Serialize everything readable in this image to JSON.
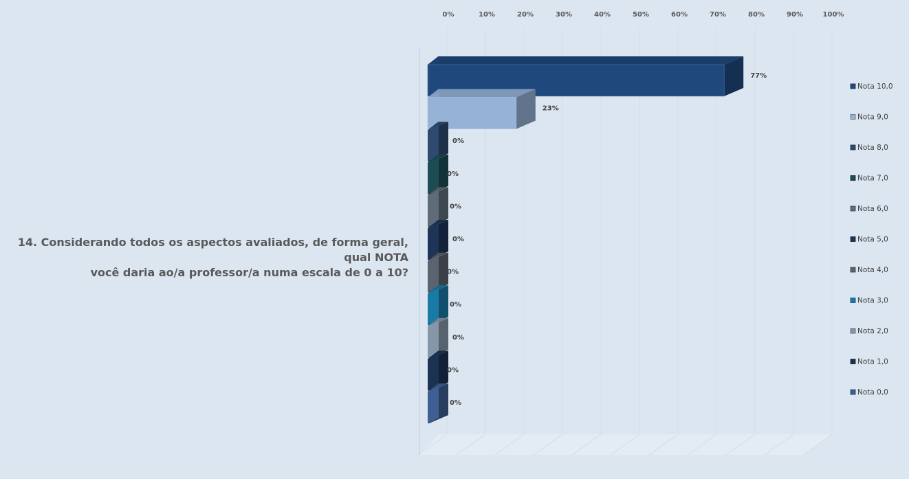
{
  "question": {
    "line1": "14. Considerando todos os aspectos avaliados, de forma geral, qual NOTA",
    "line2": "você daria ao/a professor/a numa escala de 0 a 10?"
  },
  "chart_data": {
    "type": "bar",
    "orientation": "horizontal",
    "three_d": true,
    "x_ticks": [
      "0%",
      "10%",
      "20%",
      "30%",
      "40%",
      "50%",
      "60%",
      "70%",
      "80%",
      "90%",
      "100%"
    ],
    "xlim": [
      0,
      100
    ],
    "grid": true,
    "legend_position": "right",
    "series": [
      {
        "name": "Nota 10,0",
        "value": 77,
        "label": "77%",
        "color": "#1f497d"
      },
      {
        "name": "Nota 9,0",
        "value": 23,
        "label": "23%",
        "color": "#95b3d7"
      },
      {
        "name": "Nota 8,0",
        "value": 0,
        "label": "0%",
        "color": "#2e4a6f"
      },
      {
        "name": "Nota 7,0",
        "value": 0,
        "label": "0%",
        "color": "#1d4d54"
      },
      {
        "name": "Nota 6,0",
        "value": 0,
        "label": "0%",
        "color": "#5f6b79"
      },
      {
        "name": "Nota 5,0",
        "value": 0,
        "label": "0%",
        "color": "#1e3557"
      },
      {
        "name": "Nota 4,0",
        "value": 0,
        "label": "0%",
        "color": "#5b636e"
      },
      {
        "name": "Nota 3,0",
        "value": 0,
        "label": "0%",
        "color": "#1a7aa6"
      },
      {
        "name": "Nota 2,0",
        "value": 0,
        "label": "0%",
        "color": "#8496a8"
      },
      {
        "name": "Nota 1,0",
        "value": 0,
        "label": "0%",
        "color": "#1b3253"
      },
      {
        "name": "Nota 0,0",
        "value": 0,
        "label": "0%",
        "color": "#3d5f93"
      }
    ]
  }
}
